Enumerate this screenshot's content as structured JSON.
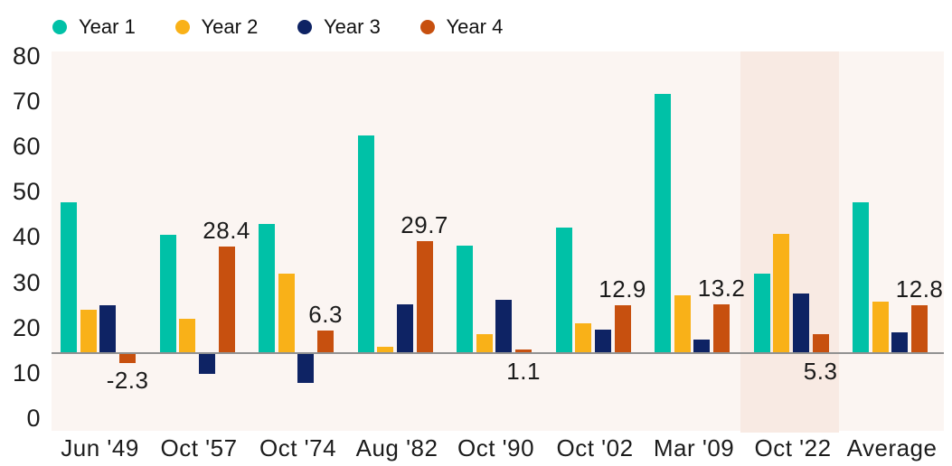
{
  "chart_data": {
    "type": "bar",
    "title": "",
    "categories": [
      "Jun '49",
      "Oct '57",
      "Oct '74",
      "Aug '82",
      "Oct '90",
      "Oct '02",
      "Mar '09",
      "Oct '22",
      "Average"
    ],
    "series": [
      {
        "name": "Year 1",
        "color": "#00c1a7",
        "values": [
          40.0,
          31.4,
          34.3,
          57.6,
          28.6,
          33.3,
          68.6,
          21.2,
          40.0
        ]
      },
      {
        "name": "Year 2",
        "color": "#f9b118",
        "values": [
          11.7,
          9.3,
          21.2,
          1.9,
          5.2,
          8.1,
          15.5,
          31.7,
          13.9
        ]
      },
      {
        "name": "Year 3",
        "color": "#0e2364",
        "values": [
          12.9,
          -5.2,
          -7.6,
          13.1,
          14.3,
          6.4,
          3.8,
          16.0,
          5.8
        ]
      },
      {
        "name": "Year 4",
        "color": "#c7500f",
        "values": [
          -2.3,
          28.4,
          6.3,
          29.7,
          1.1,
          12.9,
          13.2,
          5.3,
          12.8
        ]
      }
    ],
    "data_labels": {
      "series": "Year 4",
      "labels": [
        {
          "text": "-2.3",
          "placement": "below"
        },
        {
          "text": "28.4",
          "placement": "above"
        },
        {
          "text": "6.3",
          "placement": "above"
        },
        {
          "text": "29.7",
          "placement": "above"
        },
        {
          "text": "1.1",
          "placement": "below"
        },
        {
          "text": "12.9",
          "placement": "above"
        },
        {
          "text": "13.2",
          "placement": "above"
        },
        {
          "text": "5.3",
          "placement": "below"
        },
        {
          "text": "12.8",
          "placement": "above"
        }
      ]
    },
    "y_axis": {
      "ticks": [
        80,
        70,
        60,
        50,
        40,
        30,
        20,
        10,
        0
      ],
      "ylim": [
        -20,
        80
      ]
    },
    "xlabel": "",
    "ylabel": "",
    "grid": false,
    "legend_position": "top-left",
    "highlight": {
      "category": "Oct '22",
      "color": "#f8eae3"
    },
    "colors": {
      "plot_background": "#fbf5f2",
      "baseline": "#919191",
      "text": "#1c1c1c"
    }
  }
}
